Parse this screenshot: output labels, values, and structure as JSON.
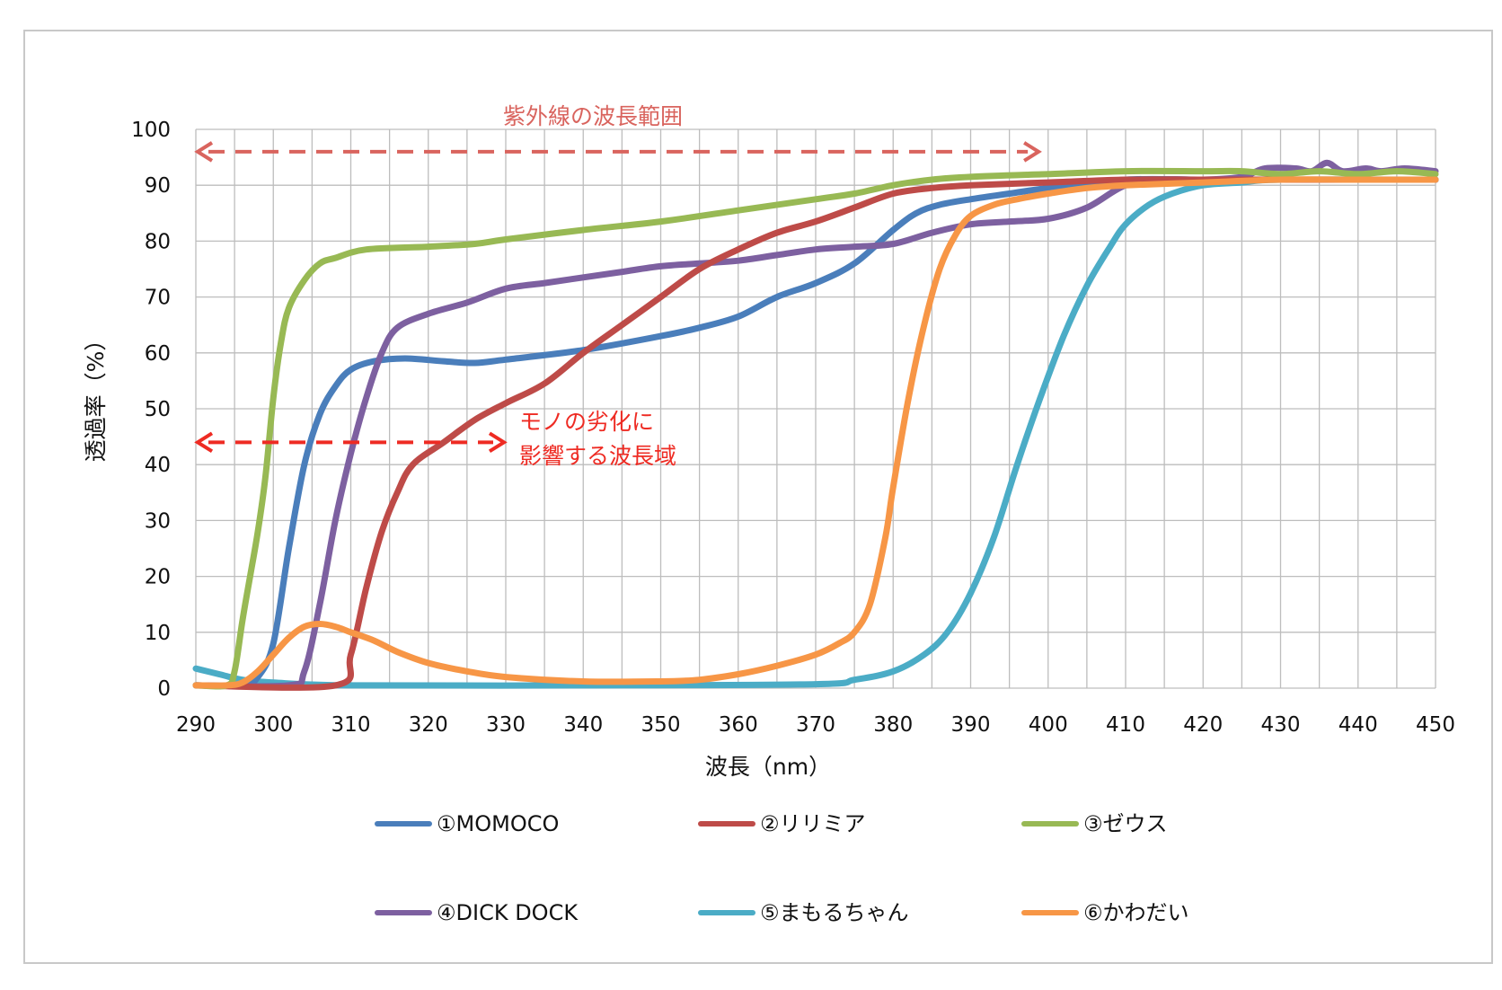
{
  "chart_data": {
    "type": "line",
    "xlabel": "波長（nm）",
    "ylabel": "透過率（%）",
    "xlim": [
      290,
      450
    ],
    "ylim": [
      0,
      100
    ],
    "x_ticks": [
      "290",
      "300",
      "310",
      "320",
      "330",
      "340",
      "350",
      "360",
      "370",
      "380",
      "390",
      "400",
      "410",
      "420",
      "430",
      "440",
      "450"
    ],
    "y_ticks": [
      "0",
      "10",
      "20",
      "30",
      "40",
      "50",
      "60",
      "70",
      "80",
      "90",
      "100"
    ],
    "grid": true,
    "legend_position": "bottom",
    "annotations": {
      "uv_range": {
        "text": "紫外線の波長範囲",
        "from": 290,
        "to": 399,
        "y": 96,
        "color": "#d9645e"
      },
      "degradation_range": {
        "line1": "モノの劣化に",
        "line2": "影響する波長域",
        "from": 290,
        "to": 330,
        "y": 44,
        "color": "#ee2b23"
      }
    },
    "series": [
      {
        "name": "①MOMOCO",
        "color": "#4a7ebb",
        "points": [
          [
            290,
            0.5
          ],
          [
            296,
            0.5
          ],
          [
            298,
            2
          ],
          [
            300,
            8
          ],
          [
            302,
            25
          ],
          [
            304,
            40
          ],
          [
            306,
            49
          ],
          [
            308,
            54
          ],
          [
            310,
            57
          ],
          [
            313,
            58.5
          ],
          [
            317,
            59
          ],
          [
            322,
            58.5
          ],
          [
            326,
            58.2
          ],
          [
            330,
            58.8
          ],
          [
            340,
            60.5
          ],
          [
            350,
            63
          ],
          [
            355,
            64.5
          ],
          [
            360,
            66.5
          ],
          [
            365,
            70
          ],
          [
            370,
            72.5
          ],
          [
            375,
            76
          ],
          [
            380,
            82
          ],
          [
            383,
            85
          ],
          [
            386,
            86.5
          ],
          [
            390,
            87.5
          ],
          [
            395,
            88.5
          ],
          [
            400,
            89.5
          ],
          [
            410,
            91
          ],
          [
            420,
            91
          ],
          [
            430,
            91
          ],
          [
            440,
            91
          ],
          [
            450,
            91
          ]
        ]
      },
      {
        "name": "②リリミア",
        "color": "#be4b48",
        "points": [
          [
            290,
            0.5
          ],
          [
            308,
            0.5
          ],
          [
            310,
            6
          ],
          [
            312,
            18
          ],
          [
            314,
            28
          ],
          [
            316,
            35
          ],
          [
            318,
            40
          ],
          [
            322,
            44
          ],
          [
            326,
            48
          ],
          [
            330,
            51
          ],
          [
            335,
            54.5
          ],
          [
            340,
            60
          ],
          [
            345,
            65
          ],
          [
            350,
            70
          ],
          [
            355,
            75
          ],
          [
            360,
            78.5
          ],
          [
            365,
            81.5
          ],
          [
            370,
            83.5
          ],
          [
            375,
            86
          ],
          [
            380,
            88.5
          ],
          [
            385,
            89.5
          ],
          [
            390,
            90
          ],
          [
            400,
            90.5
          ],
          [
            410,
            91
          ],
          [
            420,
            91
          ],
          [
            430,
            91
          ],
          [
            440,
            91
          ],
          [
            450,
            91
          ]
        ]
      },
      {
        "name": "③ゼウス",
        "color": "#98b954",
        "points": [
          [
            290,
            0.5
          ],
          [
            294,
            0.5
          ],
          [
            295,
            3
          ],
          [
            296,
            12
          ],
          [
            297,
            20
          ],
          [
            298,
            28
          ],
          [
            299,
            38
          ],
          [
            300,
            52
          ],
          [
            301,
            62
          ],
          [
            302,
            68
          ],
          [
            304,
            73
          ],
          [
            306,
            76
          ],
          [
            308,
            77
          ],
          [
            312,
            78.5
          ],
          [
            320,
            79
          ],
          [
            326,
            79.5
          ],
          [
            330,
            80.3
          ],
          [
            340,
            82
          ],
          [
            350,
            83.5
          ],
          [
            360,
            85.5
          ],
          [
            370,
            87.5
          ],
          [
            375,
            88.5
          ],
          [
            380,
            90
          ],
          [
            385,
            91
          ],
          [
            390,
            91.5
          ],
          [
            400,
            92
          ],
          [
            410,
            92.5
          ],
          [
            420,
            92.5
          ],
          [
            425,
            92.5
          ],
          [
            430,
            92
          ],
          [
            435,
            92.5
          ],
          [
            440,
            92
          ],
          [
            445,
            92.5
          ],
          [
            450,
            92
          ]
        ]
      },
      {
        "name": "④DICK DOCK",
        "color": "#7d60a0",
        "points": [
          [
            290,
            0.5
          ],
          [
            302,
            0.5
          ],
          [
            304,
            3
          ],
          [
            306,
            15
          ],
          [
            308,
            30
          ],
          [
            310,
            42
          ],
          [
            312,
            52
          ],
          [
            314,
            60
          ],
          [
            316,
            64.5
          ],
          [
            320,
            67
          ],
          [
            325,
            69
          ],
          [
            330,
            71.5
          ],
          [
            335,
            72.5
          ],
          [
            340,
            73.5
          ],
          [
            345,
            74.5
          ],
          [
            350,
            75.5
          ],
          [
            355,
            76
          ],
          [
            360,
            76.5
          ],
          [
            365,
            77.5
          ],
          [
            370,
            78.5
          ],
          [
            375,
            79
          ],
          [
            380,
            79.5
          ],
          [
            385,
            81.5
          ],
          [
            390,
            83
          ],
          [
            395,
            83.5
          ],
          [
            400,
            84
          ],
          [
            405,
            86
          ],
          [
            410,
            90
          ],
          [
            415,
            91
          ],
          [
            420,
            91
          ],
          [
            425,
            91.5
          ],
          [
            428,
            93
          ],
          [
            432,
            93
          ],
          [
            434,
            92.5
          ],
          [
            436,
            94
          ],
          [
            438,
            92.5
          ],
          [
            441,
            93
          ],
          [
            443,
            92.5
          ],
          [
            446,
            93
          ],
          [
            450,
            92.5
          ]
        ]
      },
      {
        "name": "⑤まもるちゃん",
        "color": "#4bacc6",
        "points": [
          [
            290,
            3.5
          ],
          [
            293,
            2.5
          ],
          [
            296,
            1.5
          ],
          [
            300,
            1
          ],
          [
            310,
            0.5
          ],
          [
            340,
            0.5
          ],
          [
            370,
            0.7
          ],
          [
            375,
            1.5
          ],
          [
            380,
            3
          ],
          [
            384,
            6
          ],
          [
            387,
            10
          ],
          [
            390,
            17
          ],
          [
            393,
            27
          ],
          [
            396,
            40
          ],
          [
            399,
            52
          ],
          [
            402,
            63
          ],
          [
            405,
            72
          ],
          [
            408,
            79
          ],
          [
            410,
            83
          ],
          [
            413,
            86.5
          ],
          [
            416,
            88.5
          ],
          [
            420,
            90
          ],
          [
            425,
            90.5
          ],
          [
            430,
            91
          ],
          [
            450,
            91
          ]
        ]
      },
      {
        "name": "⑥かわだい",
        "color": "#f79646",
        "points": [
          [
            290,
            0.5
          ],
          [
            294,
            0.5
          ],
          [
            296,
            1
          ],
          [
            298,
            3
          ],
          [
            300,
            6
          ],
          [
            302,
            9
          ],
          [
            304,
            11
          ],
          [
            306,
            11.5
          ],
          [
            308,
            11
          ],
          [
            310,
            10
          ],
          [
            313,
            8.5
          ],
          [
            316,
            6.5
          ],
          [
            320,
            4.5
          ],
          [
            325,
            3
          ],
          [
            330,
            2
          ],
          [
            340,
            1.2
          ],
          [
            350,
            1.2
          ],
          [
            355,
            1.5
          ],
          [
            360,
            2.5
          ],
          [
            365,
            4
          ],
          [
            370,
            6
          ],
          [
            373,
            8
          ],
          [
            375,
            10
          ],
          [
            377,
            15
          ],
          [
            379,
            27
          ],
          [
            380,
            36
          ],
          [
            382,
            52
          ],
          [
            384,
            65
          ],
          [
            386,
            75
          ],
          [
            388,
            81
          ],
          [
            390,
            84.5
          ],
          [
            393,
            86.5
          ],
          [
            396,
            87.5
          ],
          [
            400,
            88.5
          ],
          [
            405,
            89.5
          ],
          [
            410,
            90
          ],
          [
            420,
            90.5
          ],
          [
            430,
            91
          ],
          [
            440,
            91
          ],
          [
            450,
            91
          ]
        ]
      }
    ]
  }
}
